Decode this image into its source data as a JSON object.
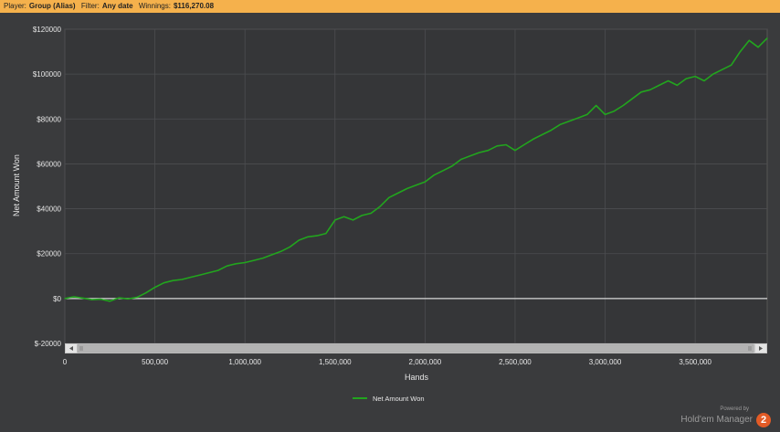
{
  "header": {
    "player_label": "Player:",
    "player_value": "Group (Alias)",
    "filter_label": "Filter:",
    "filter_value": "Any date",
    "winnings_label": "Winnings:",
    "winnings_value": "$116,270.08"
  },
  "footer": {
    "powered_by": "Powered by",
    "product": "Hold'em Manager",
    "badge": "2"
  },
  "colors": {
    "background": "#3a3b3d",
    "plot_bg": "#353638",
    "grid": "#4c4d50",
    "line": "#22a51e",
    "zero_line": "#d8d8d8",
    "header_bg": "#f5b14c"
  },
  "chart_data": {
    "type": "line",
    "xlabel": "Hands",
    "ylabel": "Net Amount Won",
    "xlim": [
      0,
      3900000
    ],
    "ylim": [
      -20000,
      120000
    ],
    "x_ticks": [
      0,
      500000,
      1000000,
      1500000,
      2000000,
      2500000,
      3000000,
      3500000
    ],
    "x_tick_labels": [
      "0",
      "500,000",
      "1,000,000",
      "1,500,000",
      "2,000,000",
      "2,500,000",
      "3,000,000",
      "3,500,000"
    ],
    "y_ticks": [
      -20000,
      0,
      20000,
      40000,
      60000,
      80000,
      100000,
      120000
    ],
    "y_tick_labels": [
      "$-20000",
      "$0",
      "$20000",
      "$40000",
      "$60000",
      "$80000",
      "$100000",
      "$120000"
    ],
    "grid": true,
    "legend_position": "bottom-center",
    "series": [
      {
        "name": "Net Amount Won",
        "x": [
          0,
          50000,
          100000,
          150000,
          200000,
          250000,
          300000,
          350000,
          400000,
          450000,
          500000,
          550000,
          600000,
          650000,
          700000,
          750000,
          800000,
          850000,
          900000,
          950000,
          1000000,
          1050000,
          1100000,
          1150000,
          1200000,
          1250000,
          1300000,
          1350000,
          1400000,
          1450000,
          1500000,
          1550000,
          1600000,
          1650000,
          1700000,
          1750000,
          1800000,
          1850000,
          1900000,
          1950000,
          2000000,
          2050000,
          2100000,
          2150000,
          2200000,
          2250000,
          2300000,
          2350000,
          2400000,
          2450000,
          2500000,
          2550000,
          2600000,
          2650000,
          2700000,
          2750000,
          2800000,
          2850000,
          2900000,
          2950000,
          3000000,
          3050000,
          3100000,
          3150000,
          3200000,
          3250000,
          3300000,
          3350000,
          3400000,
          3450000,
          3500000,
          3550000,
          3600000,
          3650000,
          3700000,
          3750000,
          3800000,
          3850000,
          3900000
        ],
        "values": [
          0,
          800,
          200,
          -500,
          -300,
          -1200,
          300,
          -200,
          500,
          2500,
          5000,
          7000,
          8000,
          8500,
          9500,
          10500,
          11500,
          12500,
          14500,
          15500,
          16000,
          17000,
          18000,
          19500,
          21000,
          23000,
          26000,
          27500,
          28000,
          29000,
          35000,
          36500,
          35000,
          37000,
          38000,
          41000,
          45000,
          47000,
          49000,
          50500,
          52000,
          55000,
          57000,
          59000,
          62000,
          63500,
          65000,
          66000,
          68000,
          68500,
          66000,
          68500,
          71000,
          73000,
          75000,
          77500,
          79000,
          80500,
          82000,
          86000,
          82000,
          83500,
          86000,
          89000,
          92000,
          93000,
          95000,
          97000,
          95000,
          98000,
          99000,
          97000,
          100000,
          102000,
          104000,
          110000,
          115000,
          112000,
          116000
        ]
      }
    ]
  }
}
